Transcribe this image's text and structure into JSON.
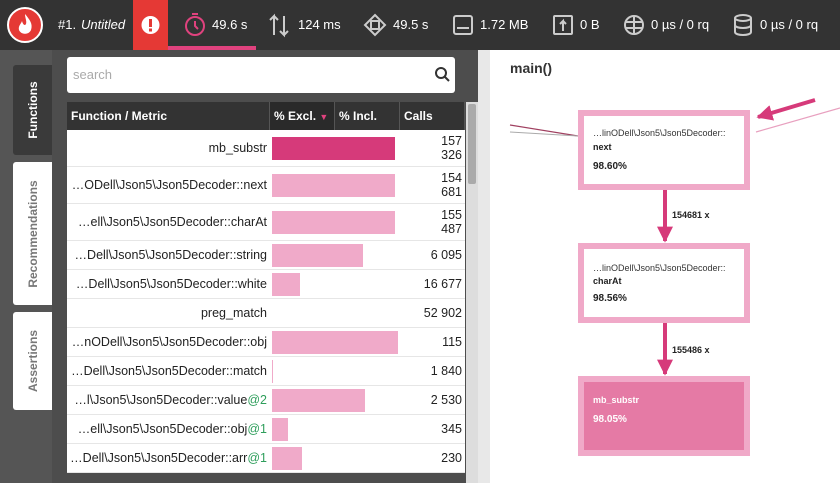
{
  "toolbar": {
    "profile_number": "#1.",
    "profile_name": "Untitled",
    "metrics": [
      "49.6 s",
      "124 ms",
      "49.5 s",
      "1.72 MB",
      "0 B",
      "0 µs / 0 rq",
      "0 µs / 0 rq"
    ]
  },
  "tabs": [
    "Functions",
    "Recommendations",
    "Assertions"
  ],
  "search_placeholder": "search",
  "table": {
    "columns": [
      "Function / Metric",
      "% Excl.",
      "% Incl.",
      "Calls"
    ],
    "rows": [
      {
        "name": "mb_substr",
        "excl": 98,
        "calls": "157 326"
      },
      {
        "name": "…ODell\\Json5\\Json5Decoder::next",
        "excl": 98,
        "calls": "154 681"
      },
      {
        "name": "…ell\\Json5\\Json5Decoder::charAt",
        "excl": 98,
        "calls": "155 487"
      },
      {
        "name": "…Dell\\Json5\\Json5Decoder::string",
        "excl": 72,
        "calls": "6 095"
      },
      {
        "name": "…Dell\\Json5\\Json5Decoder::white",
        "excl": 22,
        "calls": "16 677"
      },
      {
        "name": "preg_match",
        "excl": 0,
        "calls": "52 902"
      },
      {
        "name": "…nODell\\Json5\\Json5Decoder::obj",
        "excl": 100,
        "calls": "115"
      },
      {
        "name": "…Dell\\Json5\\Json5Decoder::match",
        "excl": 1,
        "calls": "1 840"
      },
      {
        "name": "…l\\Json5\\Json5Decoder::value",
        "suffix": "@2",
        "excl": 74,
        "calls": "2 530"
      },
      {
        "name": "…ell\\Json5\\Json5Decoder::obj",
        "suffix": "@1",
        "excl": 13,
        "calls": "345"
      },
      {
        "name": "…Dell\\Json5\\Json5Decoder::arr",
        "suffix": "@1",
        "excl": 24,
        "calls": "230"
      }
    ]
  },
  "graph": {
    "title": "main()",
    "nodes": [
      {
        "namespace": "…linODell\\Json5\\Json5Decoder::",
        "name": "next",
        "percent": "98.60%"
      },
      {
        "namespace": "…linODell\\Json5\\Json5Decoder::",
        "name": "charAt",
        "percent": "98.56%"
      },
      {
        "name": "mb_substr",
        "percent": "98.05%"
      }
    ],
    "edges": [
      {
        "label": "154681 x"
      },
      {
        "label": "155486 x"
      }
    ]
  }
}
